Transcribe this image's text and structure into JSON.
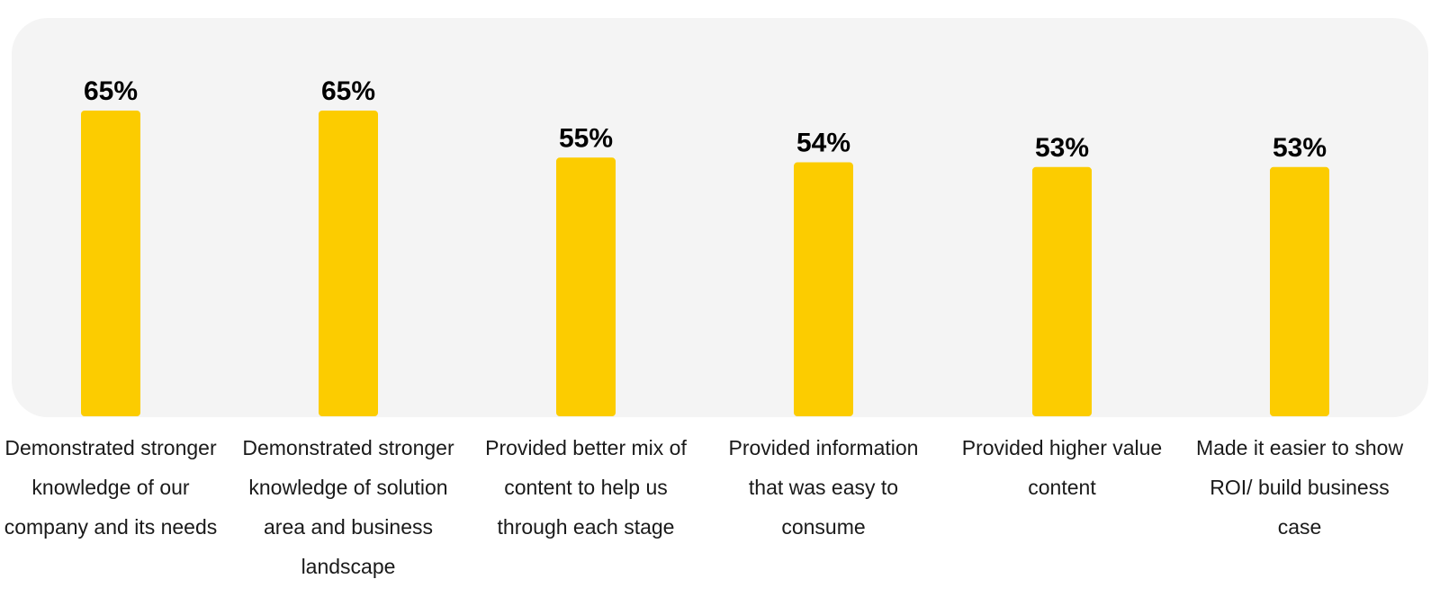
{
  "chart_data": {
    "type": "bar",
    "categories": [
      "Demonstrated stronger knowledge of our company and its needs",
      "Demonstrated stronger knowledge of solution area and business landscape",
      "Provided better mix of content to help us through each stage",
      "Provided information that was easy to consume",
      "Provided higher value content",
      "Made it easier to show ROI/ build business case"
    ],
    "values": [
      65,
      65,
      55,
      54,
      53,
      53
    ],
    "value_labels": [
      "65%",
      "65%",
      "55%",
      "54%",
      "53%",
      "53%"
    ],
    "title": "",
    "xlabel": "",
    "ylabel": "",
    "grid": false,
    "legend": "none",
    "colors": {
      "bar": "#fccc00",
      "panel": "#f4f4f4",
      "label": "#000000"
    }
  }
}
